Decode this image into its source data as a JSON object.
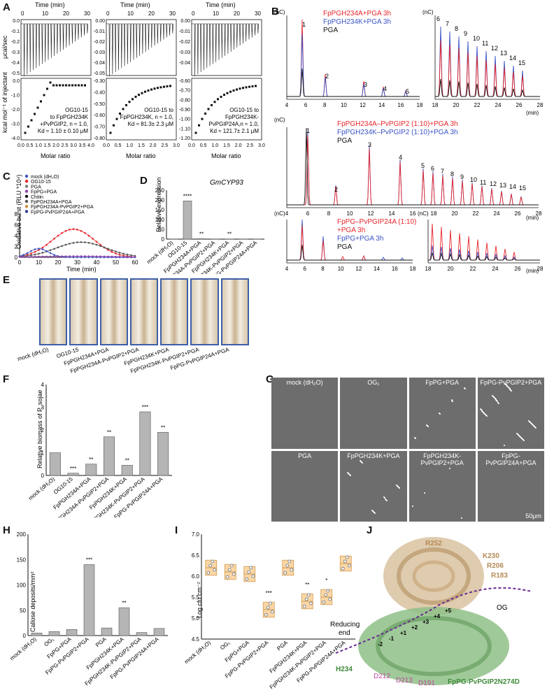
{
  "labels": {
    "a": "A",
    "b": "B",
    "c": "C",
    "d": "D",
    "e": "E",
    "f": "F",
    "g": "G",
    "h": "H",
    "i": "I",
    "j": "J"
  },
  "panel_a": {
    "time_axis": "Time (min)",
    "time_ticks": [
      "0",
      "10",
      "20",
      "30"
    ],
    "ylabel_top": "μcal/sec",
    "ylabel_bottom": "kcal mol⁻¹ of injectant",
    "xlabel": "Molar ratio",
    "sub": [
      {
        "ticks_x": [
          "0.0",
          "0.5",
          "1.0",
          "1.5",
          "2.0",
          "2.5",
          "3.0",
          "3.5",
          "4.0"
        ],
        "ticks_y_top": [
          "0.0",
          "-0.1",
          "-0.2",
          "-0.3",
          "-0.4",
          "-0.5"
        ],
        "ticks_y_bot": [
          "0.0",
          "-1.0",
          "-2.0",
          "-3.0",
          "-4.0"
        ],
        "ann1": "OG10-15",
        "ann2": "to FpPGH234K",
        "ann3": "+PvPGIP2, n ≈ 1.0,",
        "ann4": "Kd ≈ 1.10 ± 0.10 μM"
      },
      {
        "ticks_x": [
          "0.0",
          "0.5",
          "1.0",
          "1.5",
          "2.0",
          "2.5",
          "3.0"
        ],
        "ticks_y_top": [
          "0.00",
          "-0.01",
          "-0.02",
          "-0.03",
          "-0.04",
          "-0.05"
        ],
        "ticks_y_bot": [
          "-0.30",
          "-0.40",
          "-0.50",
          "-0.60",
          "-0.70",
          "-0.80"
        ],
        "ann1": "OG10-15 to",
        "ann2": "FpPGH234K, n ≈ 1.0,",
        "ann3": "Kd ≈ 81.3± 2.3 μM",
        "ann4": ""
      },
      {
        "ticks_x": [
          "0.0",
          "0.5",
          "1.0",
          "1.5",
          "2.0",
          "2.5",
          "3.0"
        ],
        "ticks_y_top": [
          "0.00",
          "-0.01",
          "-0.02",
          "-0.03",
          "-0.04"
        ],
        "ticks_y_bot": [
          "-0.60",
          "-0.70",
          "-0.80",
          "-0.90",
          "-1.00",
          "-1.10",
          "-1.20"
        ],
        "ann1": "OG10-15 to",
        "ann2": "FpPGH234K-",
        "ann3": "PvPGIP24A,n ≈ 1.0,",
        "ann4": "Kd ≈ 121.7± 2.1 μM"
      }
    ]
  },
  "panel_b": {
    "unit": "(nC)",
    "xunit": "(min)",
    "row1_legend": [
      "FpPGH234A+PGA 3h",
      "FpPGH234K+PGA 3h",
      "PGA"
    ],
    "row2_legend": [
      "FpPGH234A–PvPGIP2 (1:10)+PGA 3h",
      "FpPGH234K–PvPGIP2 (1:10)+PGA 3h",
      "PGA"
    ],
    "row3_legend": [
      "FpPG–PvPGIP24A (1:10)",
      "+PGA 3h",
      "FpPG+PGA 3h",
      "PGA"
    ],
    "row1_yticks": [
      "0",
      "50",
      "100",
      "150",
      "200",
      "250",
      "300",
      "350"
    ],
    "row1_right_yticks": [
      "0",
      "10",
      "20",
      "30",
      "40"
    ],
    "row2_yticks": [
      "0",
      "50",
      "100",
      "150",
      "200",
      "250"
    ],
    "row3_yticks": [
      "0",
      "500",
      "1000",
      "1500",
      "2000",
      "2500",
      "3000",
      "3500"
    ],
    "row3_right_yticks": [
      "0",
      "10",
      "20",
      "30",
      "40",
      "50",
      "60",
      "70",
      "80",
      "90"
    ],
    "xticks_left": [
      "4",
      "6",
      "8",
      "10",
      "12",
      "14",
      "16",
      "18"
    ],
    "xticks_right": [
      "18",
      "20",
      "22",
      "24",
      "26",
      "28"
    ],
    "xticks_wide": [
      "4",
      "6",
      "8",
      "10",
      "12",
      "14",
      "16",
      "18",
      "20",
      "22",
      "24",
      "26",
      "28"
    ]
  },
  "panel_c": {
    "legend": [
      "mock (dH₂O)",
      "OG10-15",
      "PGA",
      "FpPG+PGA",
      "Chitin",
      "FpPGH234A+PGA",
      "FpPGH234A-PvPGIP2+PGA",
      "FpPG-PvPGIP24A+PGA"
    ],
    "ylabel": "Oxidative burst (RLU *10⁴)",
    "xlabel": "Time (min)",
    "xticks": [
      "0",
      "10",
      "20",
      "30",
      "40",
      "50",
      "60"
    ],
    "yticks": [
      "0",
      "2",
      "4",
      "6",
      "8"
    ]
  },
  "panel_d": {
    "title": "GmCYP93",
    "ylabel": "Relative expression",
    "yticks": [
      "0",
      "50",
      "100",
      "150",
      "200",
      "250"
    ],
    "cats": [
      "mock (dH₂O)",
      "OG10-15",
      "FpPGH234A+PGA",
      "FpPGH234A-PvPGIP2+PGA",
      "FpPGH234K+PGA",
      "FpPGH234K-PvPGIP2+PGA",
      "FpPG-PvPGIP24A+PGA"
    ],
    "values": [
      1,
      195,
      2,
      1,
      1,
      1,
      1
    ],
    "sig": [
      "",
      "****",
      "**",
      "",
      "**",
      "",
      ""
    ]
  },
  "panel_e": {
    "cats": [
      "mock (dH₂O)",
      "OG10-15",
      "FpPGH234A+PGA",
      "FpPGH234A-PvPGIP2+PGA",
      "FpPGH234K+PGA",
      "FpPGH234K-PvPGIP2+PGA",
      "FpPG-PvPGIP24A+PGA"
    ]
  },
  "panel_f": {
    "ylabel": "Relative biomass of P. sojae",
    "yticks": [
      "0",
      "1",
      "2",
      "3",
      "4"
    ],
    "cats": [
      "mock (dH₂O)",
      "OG10-15",
      "FpPGH234A+PGA",
      "FpPGH234A-PvPGIP2+PGA",
      "FpPGH234K+PGA",
      "FpPGH234K-PvPGIP2+PGA",
      "FpPG-PvPGIP24A+PGA"
    ],
    "values": [
      1.0,
      0.1,
      0.5,
      1.7,
      0.45,
      2.8,
      1.9
    ],
    "sig": [
      "",
      "***",
      "**",
      "**",
      "**",
      "***",
      "**"
    ]
  },
  "panel_g": {
    "tiles": [
      "mock (dH₂O)",
      "OG₁",
      "FpPG+PGA",
      "FpPG-PvPGIP2+PGA",
      "PGA",
      "FpPGH234K+PGA",
      "FpPGH234K-PvPGIP2+PGA",
      "FpPG-PvPGIP24A+PGA"
    ],
    "scale": "50μm"
  },
  "panel_h": {
    "ylabel": "Callose deposits/mm²",
    "yticks": [
      "0",
      "50",
      "100",
      "150",
      "200"
    ],
    "cats": [
      "mock (dH₂O)",
      "OG₁",
      "FpPG+PGA",
      "FpPG-PvPGIP2+PGA",
      "PGA",
      "FpPGH234K+PGA",
      "FpPGH234K-PvPGIP2+PGA",
      "FpPG-PvPGIP24A+PGA"
    ],
    "values": [
      5,
      8,
      12,
      140,
      15,
      55,
      6,
      14
    ],
    "sig": [
      "",
      "",
      "",
      "***",
      "",
      "**",
      "",
      ""
    ]
  },
  "panel_i": {
    "ylabel": "Log cfu.cm⁻²",
    "yticks": [
      "4.5",
      "5.0",
      "5.5",
      "6.0",
      "6.5",
      "7.0"
    ],
    "cats": [
      "mock (dH₂O)",
      "OG₁",
      "FpPG+PGA",
      "FpPG-PvPGIP2+PGA",
      "PGA",
      "FpPGH234K+PGA",
      "FpPGH234K-PvPGIP2+PGA",
      "FpPG-PvPGIP24A+PGA"
    ],
    "values": [
      6.2,
      6.1,
      6.05,
      5.2,
      6.2,
      5.4,
      5.5,
      6.3
    ],
    "sig": [
      "",
      "",
      "",
      "***",
      "",
      "**",
      "*",
      ""
    ]
  },
  "panel_j": {
    "labels": [
      "R252",
      "K230",
      "R206",
      "R183",
      "OG",
      "Reducing",
      "end",
      "H234",
      "D212",
      "D213",
      "D191",
      "FpPG-PvPGIP2N274D"
    ],
    "subsites": [
      "-2",
      "-1",
      "+1",
      "+2",
      "+3",
      "+4",
      "+5"
    ]
  },
  "chart_data": [
    {
      "type": "bar",
      "title": "GmCYP93",
      "categories": [
        "mock (dH₂O)",
        "OG10-15",
        "FpPGH234A+PGA",
        "FpPGH234A-PvPGIP2+PGA",
        "FpPGH234K+PGA",
        "FpPGH234K-PvPGIP2+PGA",
        "FpPG-PvPGIP24A+PGA"
      ],
      "values": [
        1,
        195,
        2,
        1,
        1,
        1,
        1
      ],
      "ylabel": "Relative expression",
      "ylim": [
        0,
        250
      ]
    },
    {
      "type": "bar",
      "categories": [
        "mock (dH₂O)",
        "OG10-15",
        "FpPGH234A+PGA",
        "FpPGH234A-PvPGIP2+PGA",
        "FpPGH234K+PGA",
        "FpPGH234K-PvPGIP2+PGA",
        "FpPG-PvPGIP24A+PGA"
      ],
      "values": [
        1.0,
        0.1,
        0.5,
        1.7,
        0.45,
        2.8,
        1.9
      ],
      "ylabel": "Relative biomass of P. sojae",
      "ylim": [
        0,
        4
      ]
    },
    {
      "type": "bar",
      "categories": [
        "mock (dH₂O)",
        "OG₁",
        "FpPG+PGA",
        "FpPG-PvPGIP2+PGA",
        "PGA",
        "FpPGH234K+PGA",
        "FpPGH234K-PvPGIP2+PGA",
        "FpPG-PvPGIP24A+PGA"
      ],
      "values": [
        5,
        8,
        12,
        140,
        15,
        55,
        6,
        14
      ],
      "ylabel": "Callose deposits/mm²",
      "ylim": [
        0,
        200
      ]
    },
    {
      "type": "scatter",
      "categories": [
        "mock (dH₂O)",
        "OG₁",
        "FpPG+PGA",
        "FpPG-PvPGIP2+PGA",
        "PGA",
        "FpPGH234K+PGA",
        "FpPGH234K-PvPGIP2+PGA",
        "FpPG-PvPGIP24A+PGA"
      ],
      "values": [
        6.2,
        6.1,
        6.05,
        5.2,
        6.2,
        5.4,
        5.5,
        6.3
      ],
      "ylabel": "Log cfu.cm⁻²",
      "ylim": [
        4.5,
        7.0
      ]
    }
  ]
}
